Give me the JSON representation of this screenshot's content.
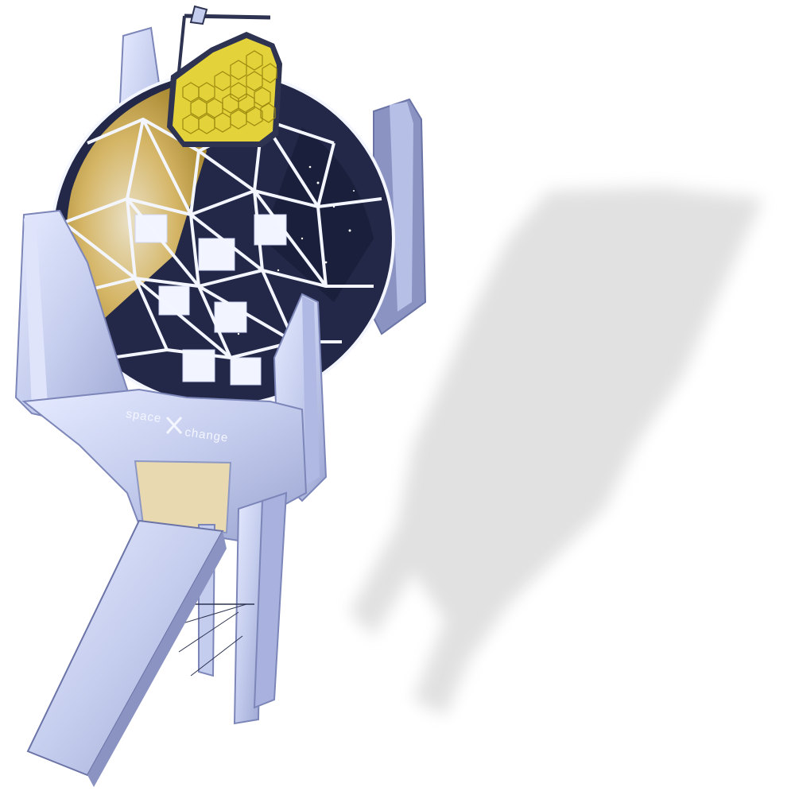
{
  "scene": {
    "brand": {
      "part1": "space",
      "part2": "change"
    },
    "colors": {
      "background": "#ffffff",
      "frame": "#c9d2ef",
      "frame_shadow": "#8e98c4",
      "mirror": "#e4d23a",
      "interior": "#1a1f3c",
      "glow": "#e9c66b",
      "shadow": "#d9d9d9"
    }
  }
}
